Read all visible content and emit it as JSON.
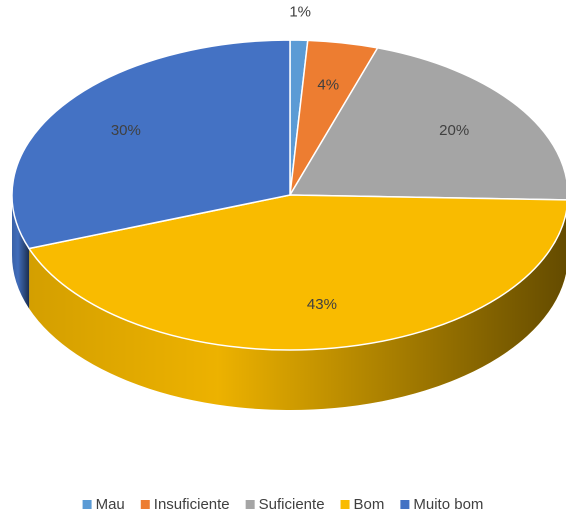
{
  "chart_data": {
    "type": "pie",
    "three_d": true,
    "categories": [
      "Mau",
      "Insuficiente",
      "Suficiente",
      "Bom",
      "Muito bom"
    ],
    "values": [
      1,
      4,
      20,
      43,
      30
    ],
    "value_labels": [
      "1%",
      "4%",
      "20%",
      "43%",
      "30%"
    ],
    "colors": [
      "#5b9bd5",
      "#ed7d31",
      "#a5a5a5",
      "#f9bb00",
      "#4472c4"
    ],
    "legend": "bottom"
  }
}
